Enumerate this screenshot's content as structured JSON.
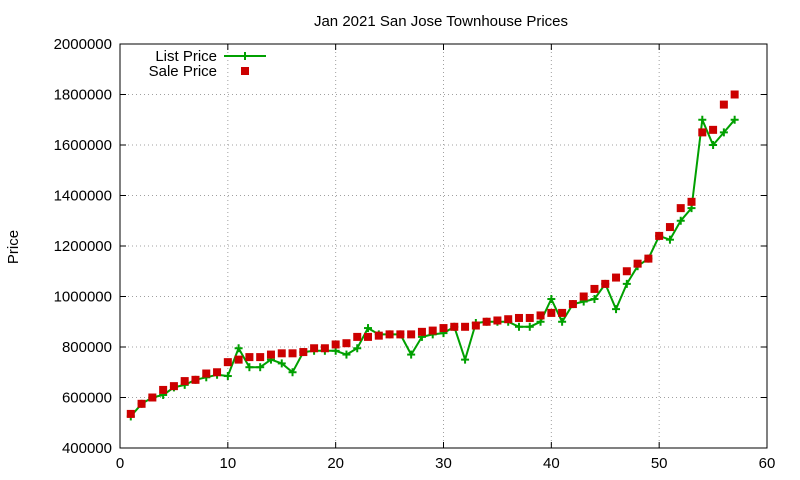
{
  "chart_data": {
    "type": "line",
    "title": "Jan 2021 San Jose Townhouse Prices",
    "xlabel": "",
    "ylabel": "Price",
    "xlim": [
      0,
      60
    ],
    "ylim": [
      400000,
      2000000
    ],
    "xticks": [
      0,
      10,
      20,
      30,
      40,
      50,
      60
    ],
    "yticks": [
      400000,
      600000,
      800000,
      1000000,
      1200000,
      1400000,
      1600000,
      1800000,
      2000000
    ],
    "xtick_labels": [
      "0",
      "10",
      "20",
      "30",
      "40",
      "50",
      "60"
    ],
    "ytick_labels": [
      "400000",
      "600000",
      "800000",
      "1000000",
      "1200000",
      "1400000",
      "1600000",
      "1800000",
      "2000000"
    ],
    "grid": true,
    "legend_position": "top-left",
    "colors": {
      "list": "#00a000",
      "sale": "#cc0000"
    },
    "series": [
      {
        "name": "List Price",
        "style": "linespoints",
        "marker": "plus",
        "x": [
          1,
          2,
          3,
          4,
          5,
          6,
          7,
          8,
          9,
          10,
          11,
          12,
          13,
          14,
          15,
          16,
          17,
          18,
          19,
          20,
          21,
          22,
          23,
          24,
          25,
          26,
          27,
          28,
          29,
          30,
          31,
          32,
          33,
          34,
          35,
          36,
          37,
          38,
          39,
          40,
          41,
          42,
          43,
          44,
          45,
          46,
          47,
          48,
          49,
          50,
          51,
          52,
          53,
          54,
          55,
          56,
          57
        ],
        "values": [
          525000,
          575000,
          600000,
          610000,
          640000,
          650000,
          670000,
          680000,
          690000,
          685000,
          795000,
          720000,
          720000,
          750000,
          735000,
          700000,
          780000,
          785000,
          785000,
          785000,
          770000,
          795000,
          875000,
          850000,
          850000,
          850000,
          770000,
          840000,
          850000,
          855000,
          880000,
          750000,
          895000,
          900000,
          900000,
          900000,
          880000,
          880000,
          900000,
          990000,
          900000,
          970000,
          980000,
          990000,
          1050000,
          950000,
          1050000,
          1120000,
          1150000,
          1240000,
          1225000,
          1300000,
          1350000,
          1700000,
          1600000,
          1650000,
          1700000
        ]
      },
      {
        "name": "Sale Price",
        "style": "points",
        "marker": "square",
        "x": [
          1,
          2,
          3,
          4,
          5,
          6,
          7,
          8,
          9,
          10,
          11,
          12,
          13,
          14,
          15,
          16,
          17,
          18,
          19,
          20,
          21,
          22,
          23,
          24,
          25,
          26,
          27,
          28,
          29,
          30,
          31,
          32,
          33,
          34,
          35,
          36,
          37,
          38,
          39,
          40,
          41,
          42,
          43,
          44,
          45,
          46,
          47,
          48,
          49,
          50,
          51,
          52,
          53,
          54,
          55,
          56,
          57
        ],
        "values": [
          535000,
          575000,
          600000,
          630000,
          645000,
          665000,
          670000,
          695000,
          700000,
          740000,
          750000,
          760000,
          760000,
          770000,
          775000,
          775000,
          780000,
          795000,
          795000,
          810000,
          815000,
          840000,
          840000,
          845000,
          850000,
          850000,
          850000,
          860000,
          865000,
          875000,
          880000,
          880000,
          885000,
          900000,
          905000,
          910000,
          915000,
          915000,
          925000,
          935000,
          935000,
          970000,
          1000000,
          1030000,
          1050000,
          1075000,
          1100000,
          1130000,
          1150000,
          1240000,
          1275000,
          1350000,
          1375000,
          1650000,
          1660000,
          1760000,
          1800000
        ]
      }
    ]
  }
}
